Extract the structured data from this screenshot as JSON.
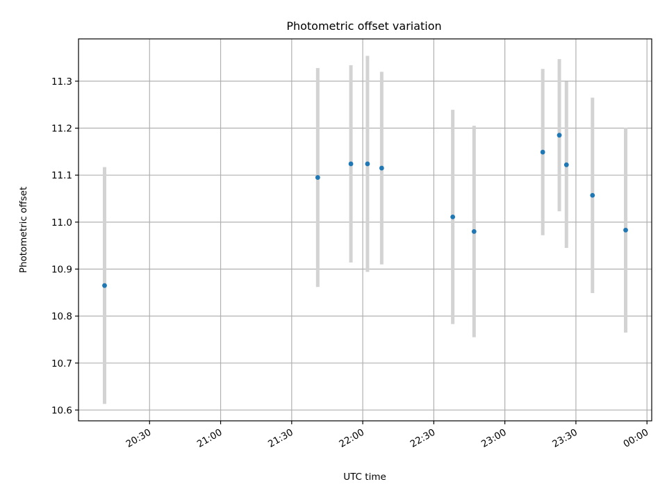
{
  "chart_data": {
    "type": "scatter",
    "title": "Photometric offset variation",
    "xlabel": "UTC time",
    "ylabel": "Photometric offset",
    "x_ticks": [
      "20:30",
      "21:00",
      "21:30",
      "22:00",
      "22:30",
      "23:00",
      "23:30",
      "00:00"
    ],
    "y_ticks": [
      "10.6",
      "10.7",
      "10.8",
      "10.9",
      "11.0",
      "11.1",
      "11.2",
      "11.3"
    ],
    "xlim": [
      "20:00",
      "00:02"
    ],
    "ylim": [
      10.577,
      11.39
    ],
    "grid": true,
    "colors": {
      "points": "#1f77b4",
      "errorbars": "#d3d3d3",
      "grid": "#b0b0b0"
    },
    "series": [
      {
        "points": [
          {
            "x": "20:11",
            "y": 10.865,
            "yerr": 0.252
          },
          {
            "x": "21:41",
            "y": 11.095,
            "yerr": 0.233
          },
          {
            "x": "21:55",
            "y": 11.124,
            "yerr": 0.21
          },
          {
            "x": "22:02",
            "y": 11.124,
            "yerr": 0.23
          },
          {
            "x": "22:08",
            "y": 11.115,
            "yerr": 0.205
          },
          {
            "x": "22:38",
            "y": 11.011,
            "yerr": 0.228
          },
          {
            "x": "22:47",
            "y": 10.98,
            "yerr": 0.225
          },
          {
            "x": "23:16",
            "y": 11.149,
            "yerr": 0.177
          },
          {
            "x": "23:23",
            "y": 11.185,
            "yerr": 0.162
          },
          {
            "x": "23:26",
            "y": 11.122,
            "yerr": 0.177
          },
          {
            "x": "23:37",
            "y": 11.057,
            "yerr": 0.208
          },
          {
            "x": "23:51",
            "y": 10.983,
            "yerr": 0.218
          }
        ]
      }
    ]
  }
}
